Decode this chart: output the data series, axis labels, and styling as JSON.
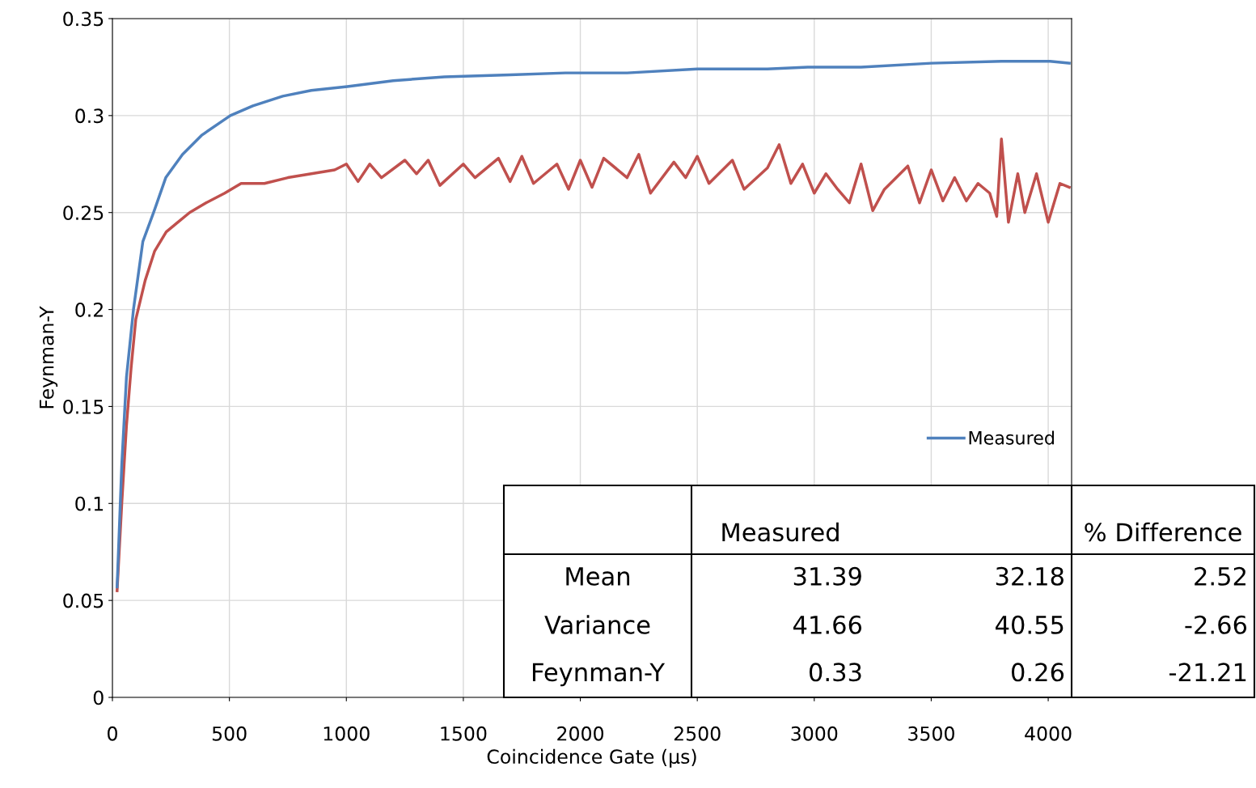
{
  "chart_data": {
    "type": "line",
    "xlabel": "Coincidence Gate (µs)",
    "ylabel": "Feynman-Y",
    "xlim": [
      0,
      4100
    ],
    "xticks": [
      0,
      500,
      1000,
      1500,
      2000,
      2500,
      3000,
      3500,
      4000
    ],
    "ylim": [
      0,
      0.35
    ],
    "yticks": [
      0,
      0.05,
      0.1,
      0.15,
      0.2,
      0.25,
      0.3,
      0.35
    ],
    "grid": true,
    "legend": "right",
    "line_style": "solid",
    "marker": "none",
    "series": [
      {
        "color": "#c0504d",
        "x": [
          20,
          40,
          60,
          80,
          100,
          140,
          180,
          230,
          280,
          330,
          400,
          480,
          550,
          650,
          750,
          850,
          950,
          1000,
          1050,
          1100,
          1150,
          1250,
          1300,
          1350,
          1400,
          1500,
          1550,
          1650,
          1700,
          1750,
          1800,
          1900,
          1950,
          2000,
          2050,
          2100,
          2200,
          2250,
          2300,
          2400,
          2450,
          2500,
          2550,
          2650,
          2700,
          2800,
          2850,
          2900,
          2950,
          3000,
          3050,
          3100,
          3150,
          3200,
          3250,
          3300,
          3400,
          3450,
          3500,
          3550,
          3600,
          3650,
          3700,
          3750,
          3780,
          3800,
          3830,
          3870,
          3900,
          3950,
          4000,
          4050,
          4090
        ],
        "values": [
          0.055,
          0.1,
          0.14,
          0.17,
          0.195,
          0.215,
          0.23,
          0.24,
          0.245,
          0.25,
          0.255,
          0.26,
          0.265,
          0.265,
          0.268,
          0.27,
          0.272,
          0.275,
          0.266,
          0.275,
          0.268,
          0.277,
          0.27,
          0.277,
          0.264,
          0.275,
          0.268,
          0.278,
          0.266,
          0.279,
          0.265,
          0.275,
          0.262,
          0.277,
          0.263,
          0.278,
          0.268,
          0.28,
          0.26,
          0.276,
          0.268,
          0.279,
          0.265,
          0.277,
          0.262,
          0.273,
          0.285,
          0.265,
          0.275,
          0.26,
          0.27,
          0.262,
          0.255,
          0.275,
          0.251,
          0.262,
          0.274,
          0.255,
          0.272,
          0.256,
          0.268,
          0.256,
          0.265,
          0.26,
          0.248,
          0.288,
          0.245,
          0.27,
          0.25,
          0.27,
          0.245,
          0.265,
          0.263
        ]
      },
      {
        "name": "Measured",
        "color": "#4f81bd",
        "x": [
          20,
          40,
          60,
          90,
          130,
          176,
          228,
          300,
          383,
          504,
          600,
          728,
          850,
          1004,
          1200,
          1419,
          1700,
          1936,
          2200,
          2500,
          2800,
          2972,
          3200,
          3500,
          3800,
          4008,
          4090
        ],
        "values": [
          0.057,
          0.12,
          0.165,
          0.2,
          0.235,
          0.25,
          0.268,
          0.28,
          0.29,
          0.3,
          0.305,
          0.31,
          0.313,
          0.315,
          0.318,
          0.32,
          0.321,
          0.322,
          0.322,
          0.324,
          0.324,
          0.325,
          0.325,
          0.327,
          0.328,
          0.328,
          0.327
        ]
      }
    ],
    "annotations": [
      null,
      "Measured",
      null,
      "% Difference",
      "Mean",
      "31.39",
      "32.18",
      "2.52",
      "Variance",
      "41.66",
      "40.55",
      "-2.66",
      "Feynman-Y",
      "0.33",
      "0.26",
      "-21.21"
    ]
  }
}
